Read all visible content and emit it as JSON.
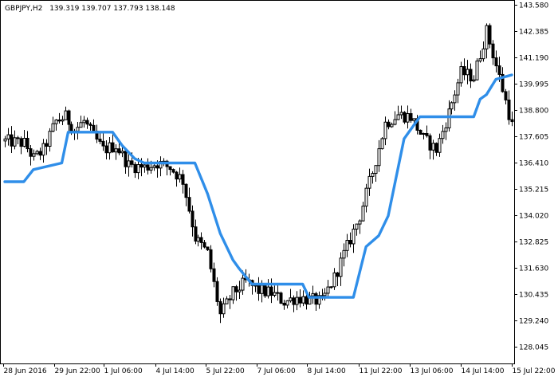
{
  "header": {
    "symbol": "GBPJPY,H2",
    "ohlc": "139.319 139.707 137.793 138.148"
  },
  "colors": {
    "indicator": "#2f8ee9",
    "candle": "#000000"
  },
  "chart_data": {
    "type": "candlestick",
    "symbol": "GBPJPY",
    "timeframe": "H2",
    "ylim": [
      127.3,
      143.8
    ],
    "y_ticks": [
      "143.580",
      "142.385",
      "141.190",
      "139.995",
      "138.800",
      "137.605",
      "136.410",
      "135.215",
      "134.020",
      "132.825",
      "131.630",
      "130.435",
      "129.240",
      "128.045"
    ],
    "x_ticks": [
      "28 Jun 2016",
      "29 Jun 22:00",
      "1 Jul 06:00",
      "4 Jul 14:00",
      "5 Jul 22:00",
      "7 Jul 06:00",
      "8 Jul 14:00",
      "11 Jul 22:00",
      "13 Jul 06:00",
      "14 Jul 14:00",
      "15 Jul 22:00"
    ],
    "bars": 161,
    "close_anchors": [
      [
        0,
        137.4
      ],
      [
        6,
        137.3
      ],
      [
        9,
        136.6
      ],
      [
        12,
        137.0
      ],
      [
        16,
        138.3
      ],
      [
        19,
        138.5
      ],
      [
        22,
        137.9
      ],
      [
        25,
        138.3
      ],
      [
        28,
        137.6
      ],
      [
        31,
        137.0
      ],
      [
        35,
        137.2
      ],
      [
        39,
        136.3
      ],
      [
        44,
        136.2
      ],
      [
        48,
        136.4
      ],
      [
        52,
        136.2
      ],
      [
        56,
        135.6
      ],
      [
        60,
        133.0
      ],
      [
        64,
        132.3
      ],
      [
        68,
        129.5
      ],
      [
        72,
        130.5
      ],
      [
        76,
        131.0
      ],
      [
        80,
        130.6
      ],
      [
        84,
        130.5
      ],
      [
        88,
        130.1
      ],
      [
        92,
        130.3
      ],
      [
        96,
        130.2
      ],
      [
        100,
        130.1
      ],
      [
        104,
        131.2
      ],
      [
        108,
        132.6
      ],
      [
        112,
        134.0
      ],
      [
        116,
        136.0
      ],
      [
        120,
        138.2
      ],
      [
        124,
        138.6
      ],
      [
        128,
        138.5
      ],
      [
        132,
        137.5
      ],
      [
        136,
        137.0
      ],
      [
        140,
        138.7
      ],
      [
        144,
        140.5
      ],
      [
        148,
        140.3
      ],
      [
        152,
        142.4
      ],
      [
        156,
        140.3
      ],
      [
        160,
        138.1
      ]
    ],
    "indicator": {
      "name": "",
      "values": [
        [
          0,
          135.55
        ],
        [
          6,
          135.55
        ],
        [
          9,
          136.1
        ],
        [
          18,
          136.4
        ],
        [
          20,
          137.8
        ],
        [
          34,
          137.8
        ],
        [
          37,
          137.2
        ],
        [
          41,
          136.6
        ],
        [
          44,
          136.4
        ],
        [
          60,
          136.4
        ],
        [
          64,
          135.0
        ],
        [
          68,
          133.2
        ],
        [
          72,
          132.0
        ],
        [
          74,
          131.6
        ],
        [
          78,
          130.9
        ],
        [
          94,
          130.9
        ],
        [
          96,
          130.3
        ],
        [
          110,
          130.3
        ],
        [
          114,
          132.6
        ],
        [
          118,
          133.1
        ],
        [
          121,
          134.0
        ],
        [
          126,
          137.5
        ],
        [
          131,
          138.5
        ],
        [
          148,
          138.5
        ],
        [
          150,
          139.3
        ],
        [
          152,
          139.5
        ],
        [
          155,
          140.2
        ],
        [
          160,
          140.4
        ]
      ]
    }
  }
}
